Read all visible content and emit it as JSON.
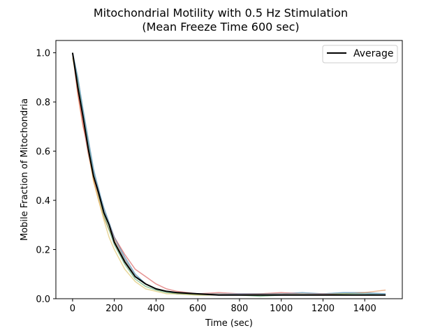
{
  "chart_data": {
    "type": "line",
    "title_line1": "Mitochondrial Motility with 0.5 Hz Stimulation",
    "title_line2": "(Mean Freeze Time 600 sec)",
    "xlabel": "Time (sec)",
    "ylabel": "Mobile Fraction of Mitochondria",
    "xlim": [
      -80,
      1580
    ],
    "ylim": [
      0,
      1.05
    ],
    "x_ticks": [
      0,
      200,
      400,
      600,
      800,
      1000,
      1200,
      1400
    ],
    "y_ticks": [
      0.0,
      0.2,
      0.4,
      0.6,
      0.8,
      1.0
    ],
    "x_tick_labels": [
      "0",
      "200",
      "400",
      "600",
      "800",
      "1000",
      "1200",
      "1400"
    ],
    "y_tick_labels": [
      "0.0",
      "0.2",
      "0.4",
      "0.6",
      "0.8",
      "1.0"
    ],
    "grid": false,
    "legend_position": "top-right",
    "legend_label": "Average",
    "series": [
      {
        "name": "Average",
        "color": "#000000",
        "x": [
          0,
          25,
          50,
          75,
          100,
          125,
          150,
          175,
          200,
          250,
          300,
          350,
          400,
          450,
          500,
          600,
          700,
          800,
          900,
          1000,
          1100,
          1200,
          1300,
          1400,
          1500
        ],
        "y": [
          1.0,
          0.86,
          0.74,
          0.61,
          0.5,
          0.43,
          0.35,
          0.3,
          0.23,
          0.15,
          0.09,
          0.06,
          0.04,
          0.03,
          0.025,
          0.02,
          0.015,
          0.015,
          0.015,
          0.015,
          0.015,
          0.015,
          0.015,
          0.015,
          0.015
        ]
      },
      {
        "color": "#2b6f9a",
        "x": [
          0,
          25,
          50,
          75,
          100,
          125,
          150,
          175,
          200,
          250,
          300,
          350,
          400,
          450,
          500,
          600,
          700,
          800,
          900,
          1000,
          1100,
          1200,
          1300,
          1400,
          1500
        ],
        "y": [
          1.0,
          0.9,
          0.77,
          0.65,
          0.53,
          0.44,
          0.37,
          0.31,
          0.25,
          0.17,
          0.1,
          0.06,
          0.04,
          0.03,
          0.02,
          0.02,
          0.015,
          0.02,
          0.02,
          0.02,
          0.025,
          0.02,
          0.025,
          0.025,
          0.02
        ]
      },
      {
        "color": "#e07b39",
        "x": [
          0,
          25,
          50,
          75,
          100,
          125,
          150,
          175,
          200,
          250,
          300,
          350,
          400,
          450,
          500,
          600,
          700,
          800,
          900,
          1000,
          1100,
          1200,
          1300,
          1400,
          1500
        ],
        "y": [
          1.0,
          0.83,
          0.7,
          0.62,
          0.48,
          0.4,
          0.33,
          0.28,
          0.24,
          0.16,
          0.09,
          0.06,
          0.04,
          0.03,
          0.025,
          0.02,
          0.02,
          0.015,
          0.02,
          0.02,
          0.015,
          0.02,
          0.02,
          0.025,
          0.035
        ]
      },
      {
        "color": "#d13b3b",
        "x": [
          0,
          25,
          50,
          75,
          100,
          125,
          150,
          175,
          200,
          250,
          300,
          350,
          400,
          450,
          500,
          600,
          700,
          800,
          900,
          1000,
          1100,
          1200,
          1300,
          1400,
          1500
        ],
        "y": [
          1.0,
          0.84,
          0.71,
          0.59,
          0.49,
          0.42,
          0.35,
          0.3,
          0.25,
          0.18,
          0.12,
          0.09,
          0.06,
          0.04,
          0.03,
          0.02,
          0.025,
          0.02,
          0.02,
          0.025,
          0.02,
          0.02,
          0.015,
          0.015,
          0.015
        ]
      },
      {
        "color": "#3c9a54",
        "x": [
          0,
          25,
          50,
          75,
          100,
          125,
          150,
          175,
          200,
          250,
          300,
          350,
          400,
          450,
          500,
          600,
          700,
          800,
          900,
          1000,
          1100,
          1200,
          1300,
          1400,
          1500
        ],
        "y": [
          1.0,
          0.88,
          0.75,
          0.63,
          0.51,
          0.42,
          0.34,
          0.28,
          0.22,
          0.14,
          0.08,
          0.05,
          0.035,
          0.025,
          0.02,
          0.015,
          0.015,
          0.015,
          0.01,
          0.015,
          0.015,
          0.015,
          0.02,
          0.02,
          0.015
        ]
      },
      {
        "color": "#d9b84a",
        "x": [
          0,
          25,
          50,
          75,
          100,
          125,
          150,
          175,
          200,
          250,
          300,
          350,
          400,
          450,
          500,
          600,
          700,
          800,
          900,
          1000,
          1100,
          1200,
          1300,
          1400,
          1500
        ],
        "y": [
          0.98,
          0.87,
          0.74,
          0.6,
          0.48,
          0.4,
          0.32,
          0.25,
          0.2,
          0.12,
          0.07,
          0.04,
          0.03,
          0.02,
          0.02,
          0.015,
          0.015,
          0.015,
          0.015,
          0.015,
          0.02,
          0.015,
          0.015,
          0.015,
          0.015
        ]
      },
      {
        "color": "#6fa8c9",
        "x": [
          0,
          25,
          50,
          75,
          100,
          125,
          150,
          175,
          200,
          250,
          300,
          350,
          400,
          450,
          500,
          600,
          700,
          800,
          900,
          1000,
          1100,
          1200,
          1300,
          1400,
          1500
        ],
        "y": [
          1.0,
          0.9,
          0.77,
          0.64,
          0.52,
          0.45,
          0.36,
          0.3,
          0.25,
          0.16,
          0.1,
          0.06,
          0.04,
          0.03,
          0.025,
          0.02,
          0.02,
          0.02,
          0.02,
          0.02,
          0.02,
          0.02,
          0.025,
          0.02,
          0.02
        ]
      }
    ]
  }
}
